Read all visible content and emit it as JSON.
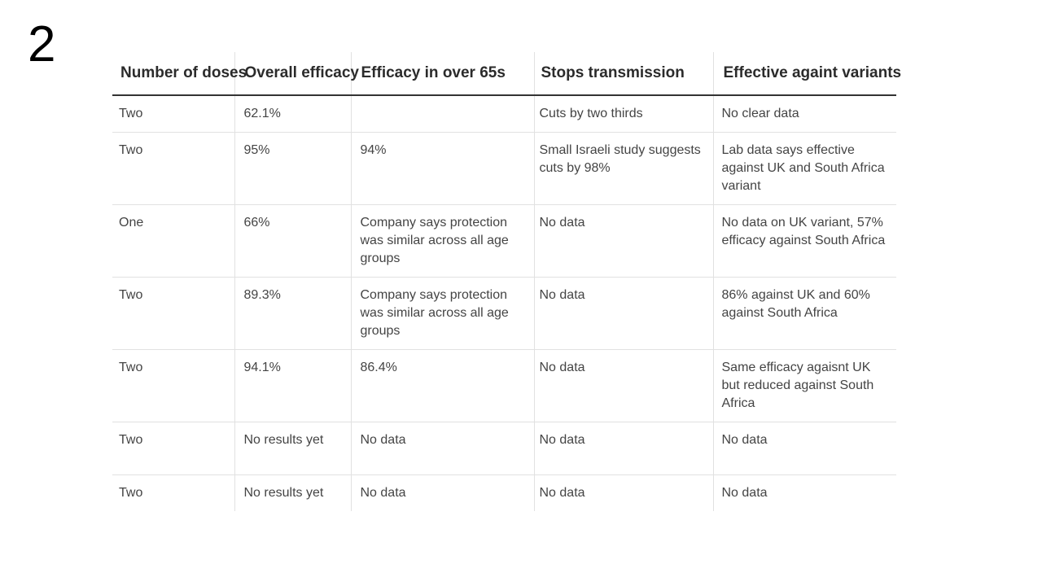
{
  "page": {
    "number": "2"
  },
  "table": {
    "headers": [
      "Number of doses",
      "Overall efficacy",
      "Efficacy in over 65s",
      "Stops transmission",
      "Effective againt variants"
    ],
    "rows": [
      [
        "Two",
        "62.1%",
        "",
        "Cuts by two thirds",
        "No clear data"
      ],
      [
        "Two",
        "95%",
        "94%",
        "Small Israeli study suggests cuts by 98%",
        "Lab data says effective against UK and South Africa variant"
      ],
      [
        "One",
        "66%",
        "Company says protection was similar across all age groups",
        "No data",
        "No data on UK variant, 57% efficacy against South Africa"
      ],
      [
        "Two",
        "89.3%",
        "Company says protection was similar across all age groups",
        "No data",
        "86% against UK and 60% against South Africa"
      ],
      [
        "Two",
        "94.1%",
        "86.4%",
        "No data",
        "Same efficacy agaisnt UK but reduced against South Africa"
      ],
      [
        "Two",
        "No results yet",
        "No data",
        "No data",
        "No data"
      ],
      [
        "Two",
        "No results yet",
        "No data",
        "No data",
        "No data"
      ]
    ]
  }
}
